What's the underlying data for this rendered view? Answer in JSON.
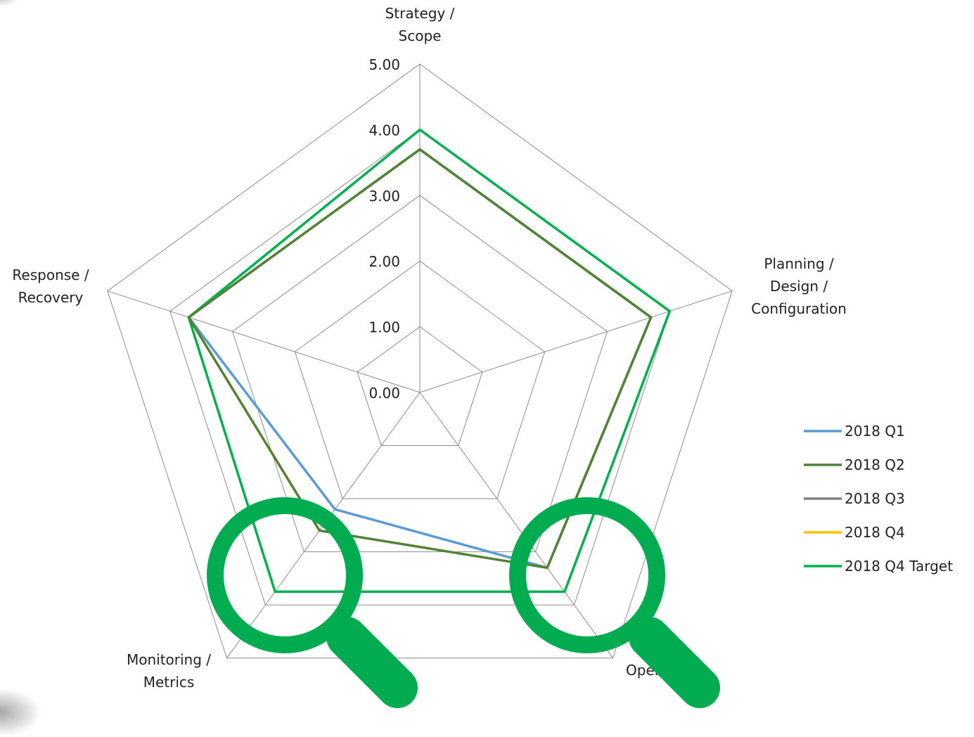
{
  "chart_data": {
    "type": "radar",
    "axes": [
      {
        "label_lines": [
          "Strategy /",
          "Scope"
        ]
      },
      {
        "label_lines": [
          "Planning /",
          "Design /",
          "Configuration"
        ]
      },
      {
        "label_lines": [
          "Operations"
        ]
      },
      {
        "label_lines": [
          "Monitoring /",
          "Metrics"
        ]
      },
      {
        "label_lines": [
          "Response /",
          "Recovery"
        ]
      }
    ],
    "tick_labels": [
      "0.00",
      "1.00",
      "2.00",
      "3.00",
      "4.00",
      "5.00"
    ],
    "rlim": [
      0,
      5
    ],
    "series": [
      {
        "name": "2018 Q1",
        "color": "#5B9BD5",
        "values": [
          3.7,
          3.7,
          3.3,
          2.2,
          3.7
        ]
      },
      {
        "name": "2018 Q2",
        "color": "#548235",
        "values": [
          3.7,
          3.7,
          3.3,
          2.6,
          3.7
        ]
      },
      {
        "name": "2018 Q3",
        "color": "#7F7F7F",
        "values": [
          3.7,
          3.7,
          3.3,
          2.6,
          3.7
        ]
      },
      {
        "name": "2018 Q4",
        "color": "#FFC000",
        "values": [
          3.7,
          3.7,
          3.3,
          2.6,
          3.7
        ]
      },
      {
        "name": "2018 Q4 Target",
        "color": "#00B050",
        "values": [
          4.0,
          4.0,
          3.75,
          3.75,
          3.7
        ]
      }
    ],
    "draw_order": [
      4,
      0,
      1
    ],
    "legend_position": "right",
    "grid": true
  },
  "decorations": {
    "magnifier_color": "#00AC4F",
    "magnifiers": [
      {
        "name": "magnifier-icon-monitoring"
      },
      {
        "name": "magnifier-icon-operations"
      }
    ]
  }
}
